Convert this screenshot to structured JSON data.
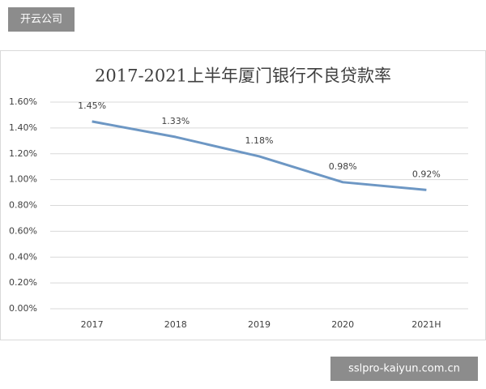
{
  "watermark_top": "开云公司",
  "watermark_bottom": "sslpro-kaiyun.com.cn",
  "chart_data": {
    "type": "line",
    "title": "2017-2021上半年厦门银行不良贷款率",
    "categories": [
      "2017",
      "2018",
      "2019",
      "2020",
      "2021H"
    ],
    "values": [
      1.45,
      1.33,
      1.18,
      0.98,
      0.92
    ],
    "value_labels": [
      "1.45%",
      "1.33%",
      "1.18%",
      "0.98%",
      "0.92%"
    ],
    "color": "#6d97c4",
    "ylim": [
      0,
      1.6
    ],
    "yticks": [
      {
        "value": 0,
        "label": "0.00%"
      },
      {
        "value": 0.2,
        "label": "0.20%"
      },
      {
        "value": 0.4,
        "label": "0.40%"
      },
      {
        "value": 0.6,
        "label": "0.60%"
      },
      {
        "value": 0.8,
        "label": "0.80%"
      },
      {
        "value": 1.0,
        "label": "1.00%"
      },
      {
        "value": 1.2,
        "label": "1.20%"
      },
      {
        "value": 1.4,
        "label": "1.40%"
      },
      {
        "value": 1.6,
        "label": "1.60%"
      }
    ],
    "grid": true
  }
}
